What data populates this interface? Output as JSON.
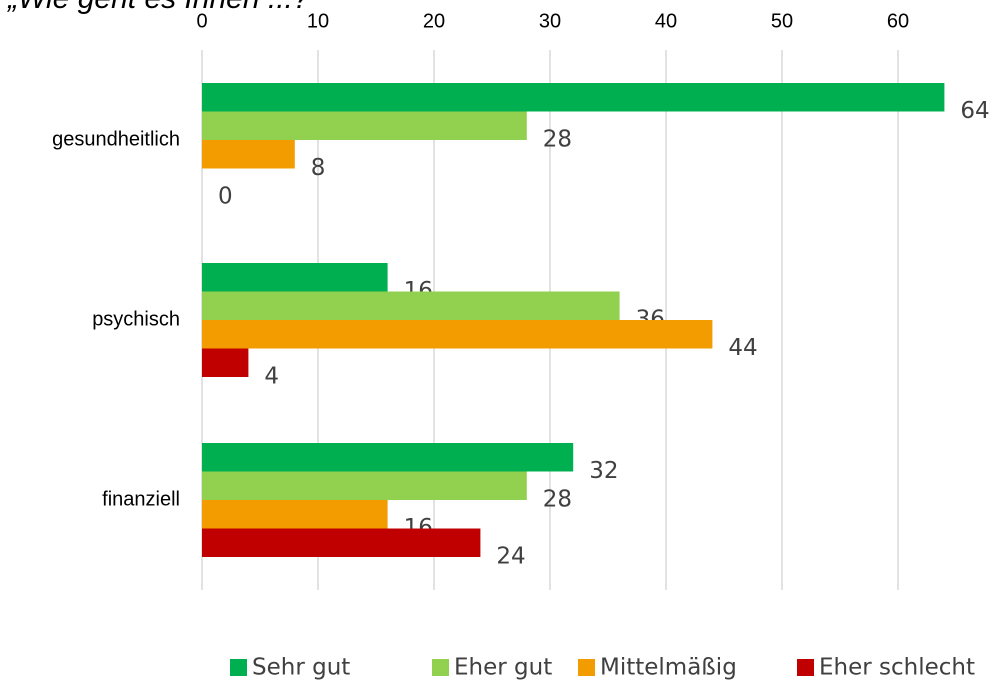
{
  "chart_data": {
    "type": "hbar",
    "title": "„Wie geht es Ihnen ...?",
    "categories": [
      "gesundheitlich",
      "psychisch",
      "finanziell"
    ],
    "series": [
      {
        "name": "Sehr gut",
        "color": "#00b050",
        "values": [
          64,
          16,
          32
        ]
      },
      {
        "name": "Eher gut",
        "color": "#92d050",
        "values": [
          28,
          36,
          28
        ]
      },
      {
        "name": "Mittelmäßig",
        "color": "#f39c00",
        "values": [
          8,
          44,
          16
        ]
      },
      {
        "name": "Eher schlecht",
        "color": "#c00000",
        "values": [
          0,
          4,
          24
        ]
      }
    ],
    "xlim": [
      0,
      65
    ],
    "xticks": [
      0,
      10,
      20,
      30,
      40,
      50,
      60
    ],
    "grid": true,
    "legend": "bottom"
  }
}
